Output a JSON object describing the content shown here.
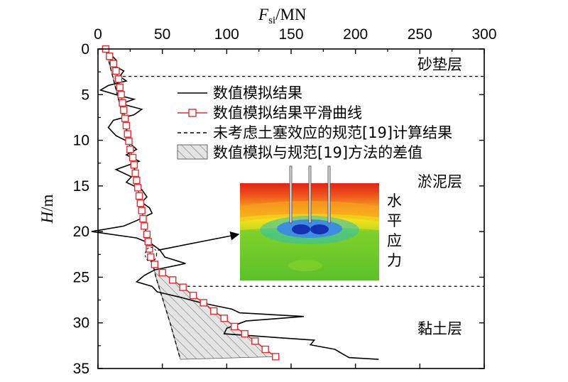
{
  "chart_data": {
    "type": "line",
    "xlabel": {
      "main": "F",
      "sub": "si",
      "unit": "/MN"
    },
    "ylabel": {
      "main": "H",
      "unit": "/m"
    },
    "xlim": [
      0,
      300
    ],
    "ylim": [
      0,
      35
    ],
    "x_ticks": [
      0,
      50,
      100,
      150,
      200,
      250,
      300
    ],
    "y_ticks": [
      0,
      5,
      10,
      15,
      20,
      25,
      30,
      35
    ],
    "x_axis_position": "top",
    "y_axis_direction": "downward",
    "grid": false,
    "legend_position": "upper-middle",
    "series": [
      {
        "name": "数值模拟结果",
        "style": "solid",
        "color": "#000000",
        "points": [
          [
            5,
            0
          ],
          [
            10,
            0.6
          ],
          [
            14,
            1.2
          ],
          [
            12,
            1.8
          ],
          [
            20,
            2.4
          ],
          [
            17,
            3.0
          ],
          [
            22,
            3.5
          ],
          [
            8,
            4.0
          ],
          [
            2,
            4.5
          ],
          [
            14,
            5.0
          ],
          [
            28,
            5.5
          ],
          [
            18,
            6.0
          ],
          [
            34,
            6.6
          ],
          [
            28,
            7.2
          ],
          [
            12,
            7.8
          ],
          [
            8,
            8.6
          ],
          [
            14,
            9.5
          ],
          [
            24,
            10.2
          ],
          [
            30,
            11.0
          ],
          [
            22,
            11.6
          ],
          [
            32,
            12.3
          ],
          [
            14,
            13.2
          ],
          [
            26,
            14.0
          ],
          [
            22,
            14.6
          ],
          [
            34,
            15.4
          ],
          [
            38,
            16.2
          ],
          [
            34,
            16.8
          ],
          [
            40,
            17.4
          ],
          [
            42,
            18.0
          ],
          [
            30,
            18.8
          ],
          [
            20,
            19.4
          ],
          [
            -5,
            20.0
          ],
          [
            30,
            20.7
          ],
          [
            42,
            21.4
          ],
          [
            48,
            22.0
          ],
          [
            52,
            22.8
          ],
          [
            68,
            23.5
          ],
          [
            44,
            24.2
          ],
          [
            36,
            24.8
          ],
          [
            30,
            25.5
          ],
          [
            42,
            26.0
          ],
          [
            46,
            26.6
          ],
          [
            64,
            27.2
          ],
          [
            80,
            27.8
          ],
          [
            104,
            28.5
          ],
          [
            110,
            28.9
          ],
          [
            160,
            29.3
          ],
          [
            115,
            29.8
          ],
          [
            100,
            30.6
          ],
          [
            98,
            31.2
          ],
          [
            138,
            31.6
          ],
          [
            168,
            31.9
          ],
          [
            165,
            32.4
          ],
          [
            184,
            32.9
          ],
          [
            190,
            33.4
          ],
          [
            195,
            33.8
          ],
          [
            218,
            34.0
          ]
        ]
      },
      {
        "name": "数值模拟结果平滑曲线",
        "style": "solid-with-square-markers",
        "color": "#e03030",
        "points": [
          [
            6,
            0
          ],
          [
            9,
            0.8
          ],
          [
            12,
            1.6
          ],
          [
            14,
            2.4
          ],
          [
            16,
            3.3
          ],
          [
            17,
            4.2
          ],
          [
            18,
            5.0
          ],
          [
            19,
            5.9
          ],
          [
            20,
            6.7
          ],
          [
            21,
            7.6
          ],
          [
            22,
            8.4
          ],
          [
            23,
            9.3
          ],
          [
            24,
            10.1
          ],
          [
            25,
            11.0
          ],
          [
            27,
            11.9
          ],
          [
            28,
            12.7
          ],
          [
            29,
            13.6
          ],
          [
            30,
            14.4
          ],
          [
            31,
            15.2
          ],
          [
            32,
            16.1
          ],
          [
            33,
            16.9
          ],
          [
            34,
            17.7
          ],
          [
            35,
            18.6
          ],
          [
            36,
            19.4
          ],
          [
            38,
            20.3
          ],
          [
            39,
            21.1
          ],
          [
            40,
            21.9
          ],
          [
            41,
            22.8
          ],
          [
            44,
            23.6
          ],
          [
            50,
            24.5
          ],
          [
            58,
            25.3
          ],
          [
            66,
            26.1
          ],
          [
            74,
            27.0
          ],
          [
            82,
            27.8
          ],
          [
            90,
            28.7
          ],
          [
            98,
            29.5
          ],
          [
            106,
            30.4
          ],
          [
            114,
            31.2
          ],
          [
            122,
            32.0
          ],
          [
            130,
            32.9
          ],
          [
            138,
            33.7
          ]
        ]
      },
      {
        "name": "未考虑土塞效应的规范[19]计算结果",
        "style": "dashed",
        "color": "#000000",
        "points": [
          [
            6,
            0
          ],
          [
            24,
            10
          ],
          [
            40,
            22
          ],
          [
            45,
            25
          ],
          [
            56,
            30
          ],
          [
            64,
            34
          ]
        ]
      }
    ],
    "shaded_region": {
      "name": "数值模拟与规范[19]方法的差值",
      "pattern": "diagonal-hatch",
      "fill": "#e4e4e4",
      "edge_color": "#555555",
      "bottom_depth": 34
    },
    "layer_boundaries": [
      3,
      26
    ],
    "layers": [
      "砂垫层",
      "淤泥层",
      "黏土层"
    ],
    "inset": {
      "title_chars": [
        "水",
        "平",
        "应",
        "力"
      ],
      "arrow_from": [
        40,
        22.5
      ]
    }
  }
}
